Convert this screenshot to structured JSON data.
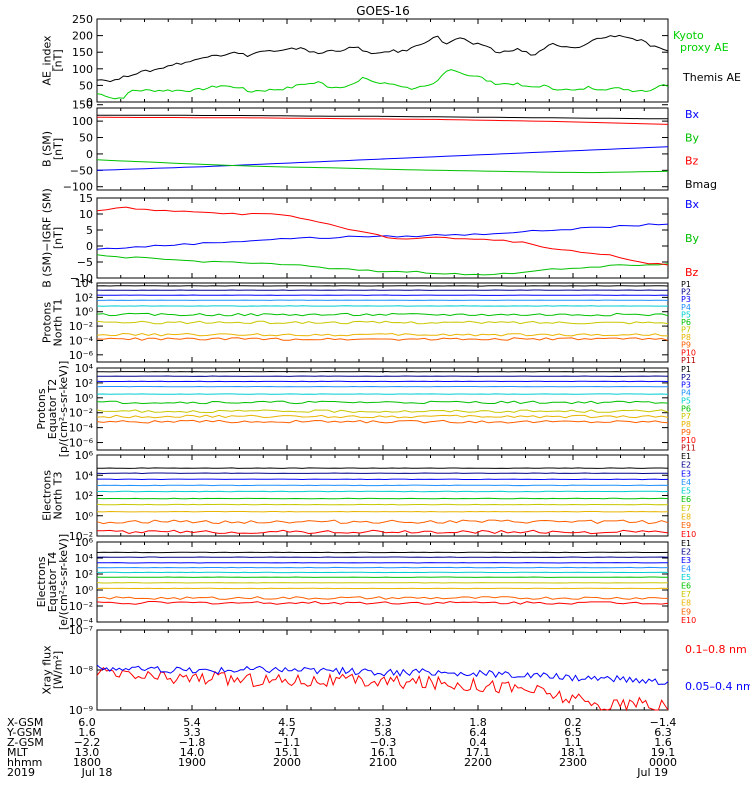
{
  "chart_data": {
    "type": "line",
    "title": "GOES-16",
    "panels": [
      {
        "id": "ae",
        "ylabel": "AE_index [nT]",
        "ylim": [
          0,
          250
        ],
        "log": false,
        "ticks": [
          "250",
          "200",
          "150",
          "100",
          "50",
          "0"
        ],
        "tick_values": [
          250,
          200,
          150,
          100,
          50,
          0
        ],
        "series": [
          {
            "name": "Kyoto proxy AE",
            "legend_lines": [
              "Kyoto",
              "proxy AE"
            ],
            "color": "#00d000",
            "values": [
              25,
              20,
              10,
              15,
              35,
              35,
              35,
              35,
              35,
              35,
              35,
              35,
              40,
              45,
              50,
              45,
              45,
              30,
              35,
              35,
              38,
              40,
              45,
              55,
              55,
              60,
              45,
              45,
              50,
              55,
              75,
              60,
              55,
              55,
              50,
              40,
              45,
              45,
              55,
              90,
              100,
              85,
              80,
              75,
              60,
              55,
              55,
              55,
              45,
              45,
              50,
              40,
              40,
              35,
              35,
              45,
              40,
              40,
              40,
              40,
              35,
              35,
              35,
              50,
              50
            ]
          },
          {
            "name": "Themis AE",
            "legend_lines": [
              "Themis AE"
            ],
            "color": "#000000",
            "values": [
              70,
              65,
              65,
              75,
              85,
              90,
              95,
              100,
              110,
              115,
              120,
              125,
              135,
              145,
              140,
              150,
              145,
              140,
              150,
              155,
              150,
              155,
              160,
              165,
              150,
              145,
              155,
              155,
              160,
              165,
              155,
              140,
              150,
              155,
              150,
              160,
              170,
              185,
              200,
              175,
              185,
              195,
              170,
              175,
              165,
              145,
              155,
              160,
              150,
              140,
              160,
              175,
              165,
              165,
              160,
              180,
              190,
              195,
              200,
              200,
              190,
              185,
              170,
              160,
              150
            ]
          }
        ]
      },
      {
        "id": "bsm",
        "ylabel": "B (SM) [nT]",
        "ylim": [
          -110,
          140
        ],
        "log": false,
        "ticks": [
          "150",
          "100",
          "50",
          "0",
          "−50",
          "−100"
        ],
        "tick_values": [
          150,
          100,
          50,
          0,
          -50,
          -100
        ],
        "series": [
          {
            "name": "Bx",
            "color": "#0000ff",
            "values": [
              -50,
              -46,
              -42,
              -38,
              -33,
              -28,
              -23,
              -18,
              -13,
              -8,
              -3,
              2,
              7,
              12,
              17,
              22
            ]
          },
          {
            "name": "By",
            "color": "#00c000",
            "values": [
              -18,
              -23,
              -28,
              -33,
              -37,
              -40,
              -42,
              -45,
              -48,
              -50,
              -52,
              -54,
              -56,
              -57,
              -55,
              -53
            ]
          },
          {
            "name": "Bz",
            "color": "#ff0000",
            "values": [
              112,
              111,
              111,
              110,
              110,
              109,
              108,
              107,
              106,
              105,
              103,
              101,
              99,
              96,
              93,
              90
            ]
          },
          {
            "name": "Bmag",
            "color": "#000000",
            "values": [
              118,
              118,
              118,
              117,
              117,
              116,
              115,
              115,
              114,
              113,
              112,
              111,
              110,
              109,
              108,
              107
            ]
          }
        ]
      },
      {
        "id": "igrf",
        "ylabel": "B (SM)−IGRF (SM) [nT]",
        "ylim": [
          -10,
          15
        ],
        "log": false,
        "ticks": [
          "15",
          "10",
          "5",
          "0",
          "−5",
          "−10"
        ],
        "tick_values": [
          15,
          10,
          5,
          0,
          -5,
          -10
        ],
        "series": [
          {
            "name": "Bx",
            "color": "#0000ff",
            "values": [
              -1,
              -0.5,
              0,
              0.5,
              1,
              1.5,
              2,
              2.5,
              2.5,
              3,
              3,
              3,
              3.5,
              3.5,
              4,
              4.5,
              5,
              5.5,
              6,
              6.5,
              7
            ]
          },
          {
            "name": "By",
            "color": "#00c000",
            "values": [
              -3,
              -3.5,
              -4,
              -4.5,
              -5,
              -5,
              -5.5,
              -6,
              -7,
              -7.5,
              -8,
              -8,
              -8.5,
              -9,
              -9,
              -8,
              -7,
              -7,
              -6,
              -6,
              -5.5
            ]
          },
          {
            "name": "Bz",
            "color": "#ff0000",
            "values": [
              11,
              12,
              11,
              11,
              10.5,
              10,
              10,
              9,
              7,
              5,
              3,
              2,
              3,
              2,
              2,
              1,
              -1,
              -2,
              -3,
              -5,
              -6
            ]
          }
        ]
      },
      {
        "id": "p_north",
        "ylabel": "Protons North T1",
        "ylim": [
          -7,
          4
        ],
        "log": true,
        "ticks": [
          "10⁴",
          "10²",
          "10⁰",
          "10⁻²",
          "10⁻⁴",
          "10⁻⁶"
        ],
        "tick_values": [
          4,
          2,
          0,
          -2,
          -4,
          -6
        ],
        "channels": [
          "P1",
          "P2",
          "P3",
          "P4",
          "P5",
          "P6",
          "P7",
          "P8",
          "P9",
          "P10",
          "P11"
        ],
        "levels": [
          3.6,
          3.0,
          2.3,
          1.6,
          0.8,
          -0.4,
          -1.5,
          -3.2,
          -3.8,
          -7,
          -7
        ]
      },
      {
        "id": "p_equator",
        "ylabel": "Protons Equator T2 [p/(cm²-s-sr-keV)]",
        "ylim": [
          -7,
          4
        ],
        "log": true,
        "ticks": [
          "10⁴",
          "10²",
          "10⁰",
          "10⁻²",
          "10⁻⁴",
          "10⁻⁶"
        ],
        "tick_values": [
          4,
          2,
          0,
          -2,
          -4,
          -6
        ],
        "channels": [
          "P1",
          "P2",
          "P3",
          "P4",
          "P5",
          "P6",
          "P7",
          "P8",
          "P9",
          "P10",
          "P11"
        ],
        "levels": [
          3.5,
          2.9,
          2.2,
          1.5,
          0.5,
          -0.6,
          -1.8,
          -2.5,
          -3.2,
          -7,
          -7
        ]
      },
      {
        "id": "e_north",
        "ylabel": "Electrons North T3",
        "ylim": [
          -2,
          6
        ],
        "log": true,
        "ticks": [
          "10⁶",
          "10⁴",
          "10²",
          "10⁰",
          "10⁻²"
        ],
        "tick_values": [
          6,
          4,
          2,
          0,
          -2
        ],
        "channels": [
          "E1",
          "E2",
          "E3",
          "E4",
          "E5",
          "E6",
          "E7",
          "E8",
          "E9",
          "E10"
        ],
        "levels": [
          4.7,
          4.2,
          3.6,
          3.0,
          2.4,
          1.7,
          1.1,
          0.4,
          -0.6,
          -1.6
        ]
      },
      {
        "id": "e_equator",
        "ylabel": "Electrons Equator T4 [e/(cm²-s-sr-keV)]",
        "ylim": [
          -4,
          6
        ],
        "log": true,
        "ticks": [
          "10⁶",
          "10⁴",
          "10²",
          "10⁰",
          "10⁻²",
          "10⁻⁴"
        ],
        "tick_values": [
          6,
          4,
          2,
          0,
          -2,
          -4
        ],
        "channels": [
          "E1",
          "E2",
          "E3",
          "E4",
          "E5",
          "E6",
          "E7",
          "E8",
          "E9",
          "E10"
        ],
        "levels": [
          4.7,
          4.1,
          3.4,
          2.8,
          2.2,
          1.6,
          0.9,
          0.2,
          -1.0,
          -1.6
        ]
      },
      {
        "id": "xray",
        "ylabel": "Xray flux [W/m²]",
        "ylim": [
          -9,
          -7
        ],
        "log": true,
        "ticks": [
          "10⁻⁷",
          "10⁻⁸",
          "10⁻⁹"
        ],
        "tick_values": [
          -7,
          -8,
          -9
        ],
        "series": [
          {
            "name": "0.1–0.8 nm",
            "color": "#ff0000",
            "values": [
              -8.1,
              -8.15,
              -8.2,
              -8.2,
              -8.22,
              -8.25,
              -8.25,
              -8.27,
              -8.28,
              -8.3,
              -8.32,
              -8.35,
              -8.4,
              -8.5,
              -8.7,
              -8.9,
              -8.85,
              -8.95
            ]
          },
          {
            "name": "0.05–0.4 nm",
            "color": "#0000ff",
            "values": [
              -7.95,
              -7.98,
              -8.0,
              -8.02,
              -8.0,
              -7.98,
              -8.0,
              -8.02,
              -8.05,
              -8.08,
              -8.05,
              -8.1,
              -8.1,
              -8.15,
              -8.18,
              -8.2,
              -8.25,
              -8.3
            ]
          }
        ]
      }
    ],
    "xaxis": {
      "rows": [
        {
          "label": "X-GSM",
          "values": [
            "6.0",
            "5.4",
            "4.5",
            "3.3",
            "1.8",
            "0.2",
            "−1.4"
          ]
        },
        {
          "label": "Y-GSM",
          "values": [
            "1.6",
            "3.3",
            "4.7",
            "5.8",
            "6.4",
            "6.5",
            "6.3"
          ]
        },
        {
          "label": "Z-GSM",
          "values": [
            "−2.2",
            "−1.8",
            "−1.1",
            "−0.3",
            "0.4",
            "1.1",
            "1.6"
          ]
        },
        {
          "label": "MLT",
          "values": [
            "13.0",
            "14.0",
            "15.1",
            "16.1",
            "17.1",
            "18.1",
            "19.1"
          ]
        },
        {
          "label": "hhmm",
          "values": [
            "1800",
            "1900",
            "2000",
            "2100",
            "2200",
            "2300",
            "0000"
          ]
        }
      ],
      "year": "2019",
      "date_start": "Jul 18",
      "date_end": "Jul 19"
    }
  }
}
